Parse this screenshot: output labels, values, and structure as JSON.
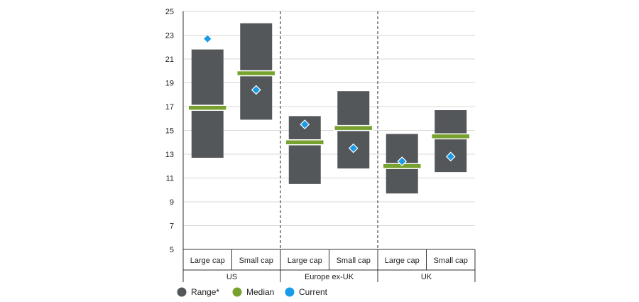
{
  "chart_data": {
    "type": "range-median-current",
    "y_ticks": [
      "5",
      "7",
      "9",
      "11",
      "13",
      "15",
      "17",
      "19",
      "21",
      "23",
      "25"
    ],
    "ylim": [
      5,
      25
    ],
    "grid": true,
    "groups": [
      "US",
      "Europe ex-UK",
      "UK"
    ],
    "categories": [
      {
        "group": "US",
        "label": "Large cap",
        "range": [
          12.7,
          21.8
        ],
        "median": 16.9,
        "current": 22.7
      },
      {
        "group": "US",
        "label": "Small cap",
        "range": [
          15.9,
          24.0
        ],
        "median": 19.8,
        "current": 18.4
      },
      {
        "group": "Europe ex-UK",
        "label": "Large cap",
        "range": [
          10.5,
          16.2
        ],
        "median": 14.0,
        "current": 15.5
      },
      {
        "group": "Europe ex-UK",
        "label": "Small cap",
        "range": [
          11.8,
          18.3
        ],
        "median": 15.2,
        "current": 13.5
      },
      {
        "group": "UK",
        "label": "Large cap",
        "range": [
          9.7,
          14.7
        ],
        "median": 12.0,
        "current": 12.4
      },
      {
        "group": "UK",
        "label": "Small cap",
        "range": [
          11.5,
          16.7
        ],
        "median": 14.5,
        "current": 12.8
      }
    ],
    "legend": {
      "position": "bottom",
      "items": [
        {
          "label": "Range*",
          "color": "#54575a"
        },
        {
          "label": "Median",
          "color": "#78a22f"
        },
        {
          "label": "Current",
          "color": "#1a9be8"
        }
      ]
    },
    "colors": {
      "range": "#54575a",
      "median": "#78a22f",
      "current": "#1a9be8"
    }
  }
}
